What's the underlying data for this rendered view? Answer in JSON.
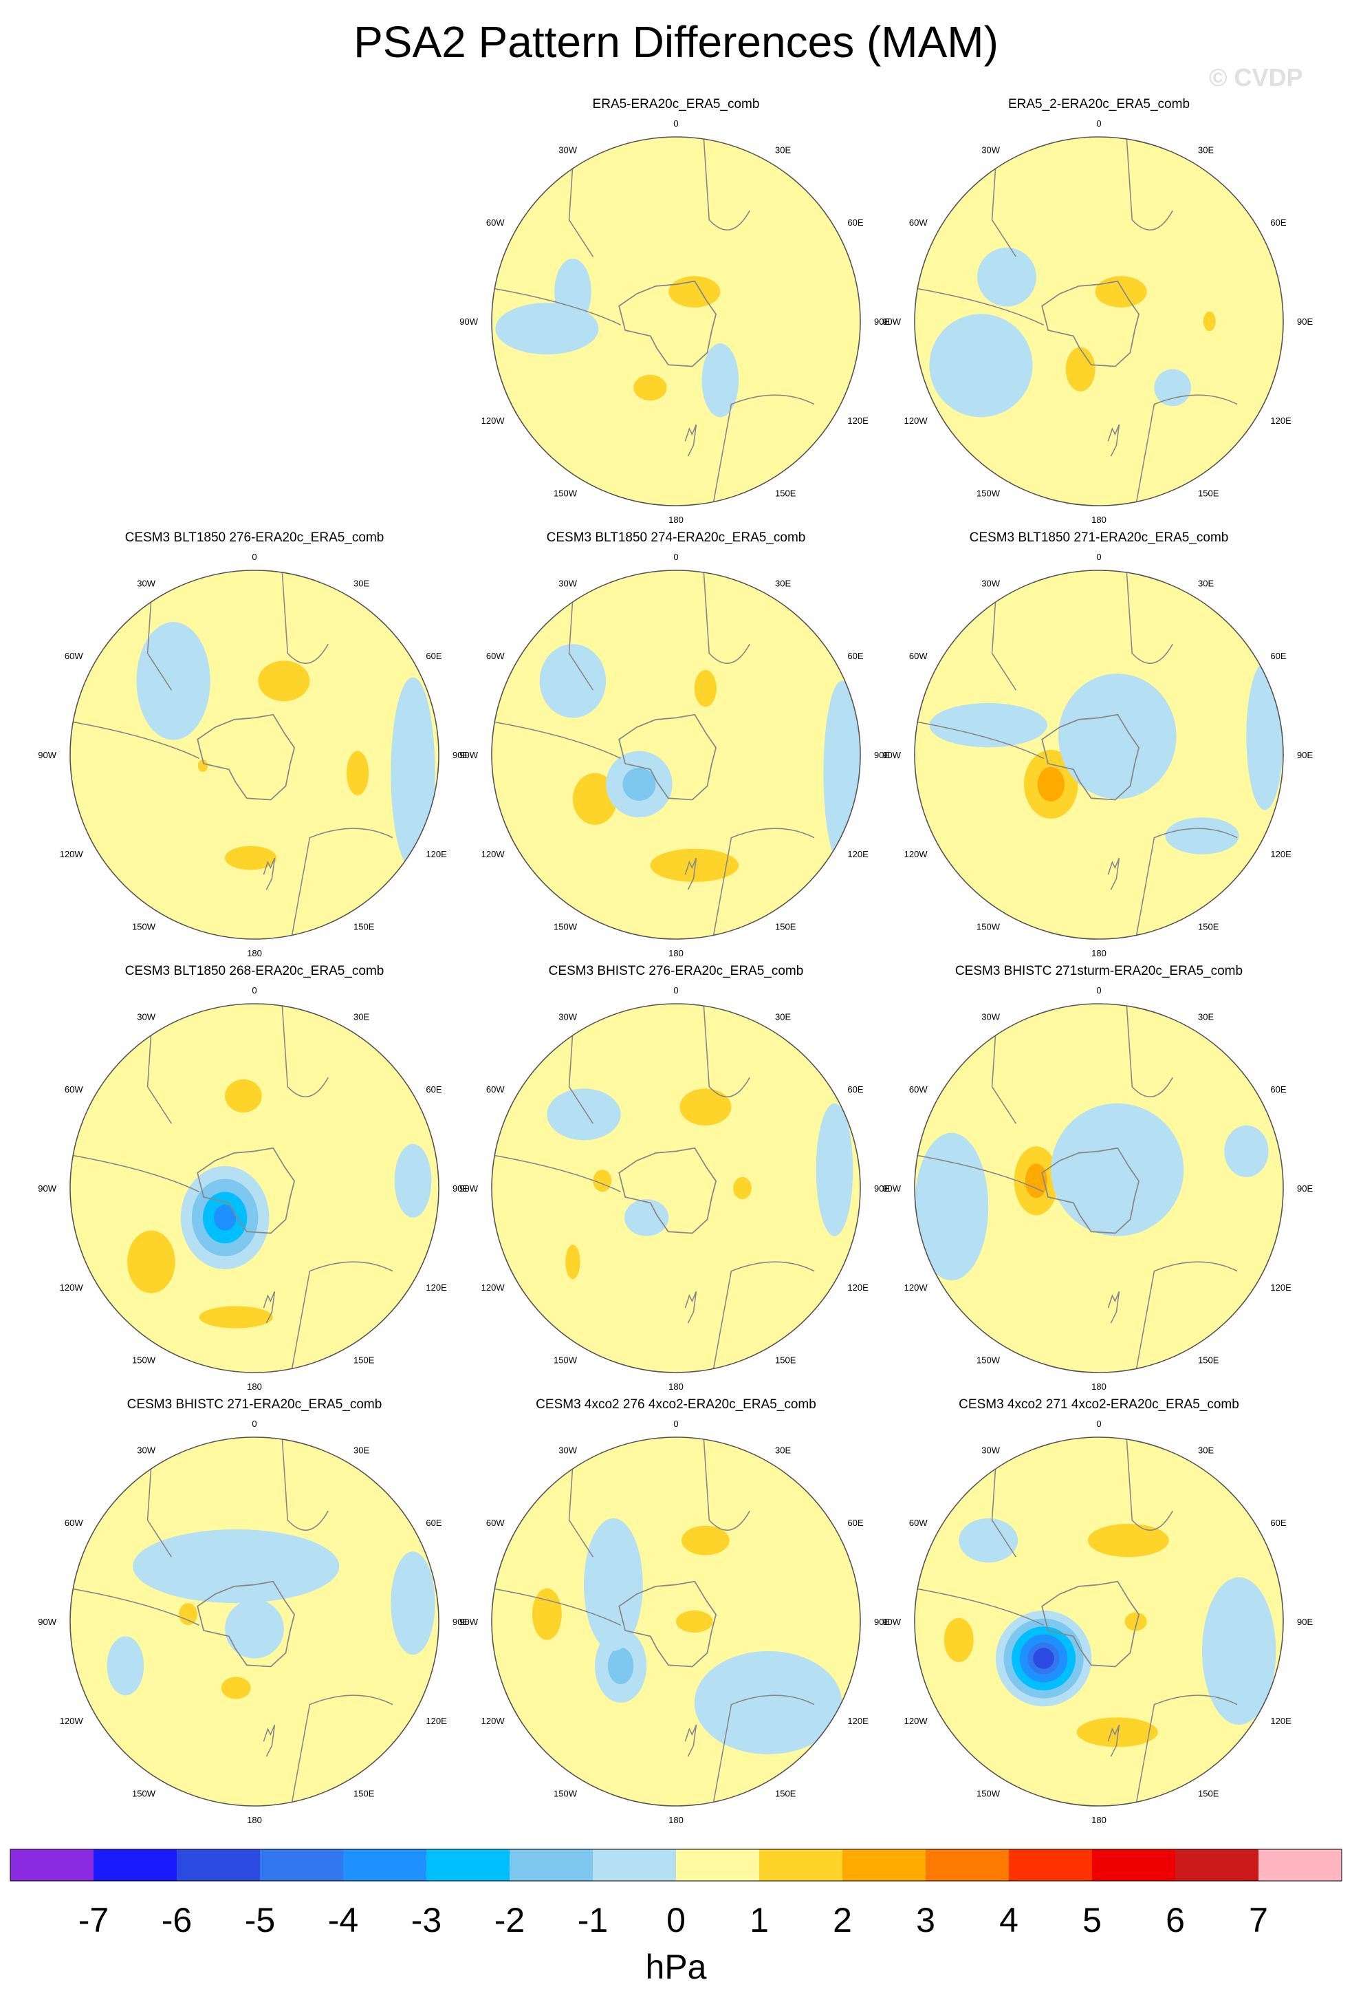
{
  "title": "PSA2 Pattern Differences (MAM)",
  "watermark": "© CVDP",
  "chart_data": {
    "type": "polar-contour-maps",
    "title": "PSA2 Pattern Differences (MAM)",
    "projection": "south-polar-stereographic",
    "longitude_labels": [
      "0",
      "30E",
      "60E",
      "90E",
      "120E",
      "150E",
      "180",
      "150W",
      "120W",
      "90W",
      "60W",
      "30W"
    ],
    "panels": [
      {
        "row": 0,
        "col": 1,
        "title": "ERA5-ERA20c_ERA5_comb",
        "anomalies": [
          [
            2,
            0.55,
            0.42,
            0.14,
            0.085
          ],
          [
            1,
            0.78,
            0.5,
            0.06,
            0.1
          ],
          [
            2,
            0.43,
            0.68,
            0.09,
            0.07
          ],
          [
            -1,
            0.22,
            0.42,
            0.05,
            0.09
          ],
          [
            -1,
            0.15,
            0.52,
            0.14,
            0.07
          ],
          [
            -1,
            0.62,
            0.66,
            0.05,
            0.1
          ]
        ]
      },
      {
        "row": 0,
        "col": 2,
        "title": "ERA5_2-ERA20c_ERA5_comb",
        "anomalies": [
          [
            2,
            0.56,
            0.42,
            0.14,
            0.085
          ],
          [
            1.5,
            0.8,
            0.5,
            0.05,
            0.08
          ],
          [
            2,
            0.45,
            0.63,
            0.08,
            0.12
          ],
          [
            -1,
            0.25,
            0.38,
            0.08,
            0.08
          ],
          [
            -1,
            0.18,
            0.62,
            0.14,
            0.14
          ],
          [
            -1,
            0.7,
            0.68,
            0.05,
            0.05
          ]
        ]
      },
      {
        "row": 1,
        "col": 0,
        "title": "CESM3 BLT1850 276-ERA20c_ERA5_comb",
        "anomalies": [
          [
            2,
            0.58,
            0.3,
            0.14,
            0.11
          ],
          [
            2,
            0.78,
            0.55,
            0.06,
            0.12
          ],
          [
            2,
            0.49,
            0.78,
            0.14,
            0.065
          ],
          [
            1.5,
            0.36,
            0.53,
            0.04,
            0.05
          ],
          [
            -1,
            0.28,
            0.3,
            0.1,
            0.16
          ],
          [
            -1,
            0.93,
            0.55,
            0.06,
            0.26
          ]
        ]
      },
      {
        "row": 1,
        "col": 1,
        "title": "CESM3 BLT1850 274-ERA20c_ERA5_comb",
        "anomalies": [
          [
            2,
            0.58,
            0.32,
            0.06,
            0.1
          ],
          [
            2,
            0.28,
            0.62,
            0.12,
            0.14
          ],
          [
            2,
            0.55,
            0.8,
            0.24,
            0.09
          ],
          [
            -2,
            0.4,
            0.58,
            0.09,
            0.09
          ],
          [
            -1,
            0.22,
            0.3,
            0.09,
            0.1
          ],
          [
            -1,
            0.95,
            0.55,
            0.05,
            0.25
          ]
        ]
      },
      {
        "row": 1,
        "col": 2,
        "title": "CESM3 BLT1850 271-ERA20c_ERA5_comb",
        "anomalies": [
          [
            3,
            0.37,
            0.58,
            0.11,
            0.14
          ],
          [
            -1,
            0.55,
            0.45,
            0.16,
            0.17
          ],
          [
            -1,
            0.2,
            0.42,
            0.16,
            0.06
          ],
          [
            -1,
            0.78,
            0.72,
            0.1,
            0.05
          ],
          [
            -1,
            0.95,
            0.45,
            0.05,
            0.2
          ]
        ]
      },
      {
        "row": 2,
        "col": 0,
        "title": "CESM3 BLT1850 268-ERA20c_ERA5_comb",
        "anomalies": [
          [
            2,
            0.47,
            0.25,
            0.1,
            0.09
          ],
          [
            2,
            0.22,
            0.7,
            0.13,
            0.17
          ],
          [
            2,
            0.45,
            0.85,
            0.2,
            0.06
          ],
          [
            -4,
            0.42,
            0.58,
            0.12,
            0.14
          ],
          [
            -1,
            0.93,
            0.48,
            0.05,
            0.1
          ]
        ]
      },
      {
        "row": 2,
        "col": 1,
        "title": "CESM3 BHISTC 276-ERA20c_ERA5_comb",
        "anomalies": [
          [
            2,
            0.58,
            0.28,
            0.14,
            0.1
          ],
          [
            2,
            0.3,
            0.48,
            0.05,
            0.06
          ],
          [
            2,
            0.68,
            0.5,
            0.05,
            0.06
          ],
          [
            1.5,
            0.22,
            0.7,
            0.06,
            0.14
          ],
          [
            -1,
            0.25,
            0.3,
            0.1,
            0.07
          ],
          [
            -1,
            0.42,
            0.58,
            0.06,
            0.05
          ],
          [
            -1,
            0.93,
            0.45,
            0.05,
            0.18
          ]
        ]
      },
      {
        "row": 2,
        "col": 2,
        "title": "CESM3 BHISTC 271sturm-ERA20c_ERA5_comb",
        "anomalies": [
          [
            3,
            0.33,
            0.48,
            0.09,
            0.14
          ],
          [
            -1,
            0.55,
            0.45,
            0.18,
            0.18
          ],
          [
            -1,
            0.1,
            0.55,
            0.1,
            0.2
          ],
          [
            -1,
            0.9,
            0.4,
            0.06,
            0.07
          ]
        ]
      },
      {
        "row": 3,
        "col": 0,
        "title": "CESM3 BHISTC 271-ERA20c_ERA5_comb",
        "anomalies": [
          [
            2,
            0.32,
            0.48,
            0.05,
            0.06
          ],
          [
            2,
            0.45,
            0.68,
            0.08,
            0.06
          ],
          [
            -1,
            0.45,
            0.35,
            0.28,
            0.1
          ],
          [
            -1,
            0.5,
            0.52,
            0.08,
            0.08
          ],
          [
            -1,
            0.15,
            0.62,
            0.05,
            0.08
          ],
          [
            -1,
            0.93,
            0.45,
            0.06,
            0.14
          ]
        ]
      },
      {
        "row": 3,
        "col": 1,
        "title": "CESM3 4xco2 276 4xco2-ERA20c_ERA5_comb",
        "anomalies": [
          [
            2,
            0.58,
            0.28,
            0.13,
            0.08
          ],
          [
            2,
            0.15,
            0.48,
            0.08,
            0.14
          ],
          [
            2,
            0.55,
            0.5,
            0.1,
            0.06
          ],
          [
            -2,
            0.35,
            0.62,
            0.07,
            0.1
          ],
          [
            -1,
            0.33,
            0.4,
            0.08,
            0.18
          ],
          [
            -1,
            0.75,
            0.72,
            0.2,
            0.14
          ]
        ]
      },
      {
        "row": 3,
        "col": 2,
        "title": "CESM3 4xco2 271 4xco2-ERA20c_ERA5_comb",
        "anomalies": [
          [
            -6,
            0.35,
            0.6,
            0.13,
            0.13
          ],
          [
            2,
            0.58,
            0.28,
            0.22,
            0.09
          ],
          [
            2,
            0.55,
            0.8,
            0.22,
            0.08
          ],
          [
            2,
            0.12,
            0.55,
            0.08,
            0.12
          ],
          [
            2,
            0.6,
            0.5,
            0.06,
            0.05
          ],
          [
            -1,
            0.88,
            0.58,
            0.1,
            0.2
          ],
          [
            -1,
            0.2,
            0.28,
            0.08,
            0.06
          ]
        ]
      }
    ],
    "colorbar": {
      "label": "hPa",
      "tick_labels": [
        "-7",
        "-6",
        "-5",
        "-4",
        "-3",
        "-2",
        "-1",
        "0",
        "1",
        "2",
        "3",
        "4",
        "5",
        "6",
        "7"
      ],
      "colors": [
        "#8a2be2",
        "#1a1aff",
        "#2b4be0",
        "#3377ee",
        "#1e90ff",
        "#00bfff",
        "#7ec8f0",
        "#b5dff3",
        "#fff9a0",
        "#ffd42a",
        "#ffaa00",
        "#ff7a00",
        "#ff3300",
        "#ee0000",
        "#cc1a1a",
        "#ffb6c1"
      ]
    }
  }
}
